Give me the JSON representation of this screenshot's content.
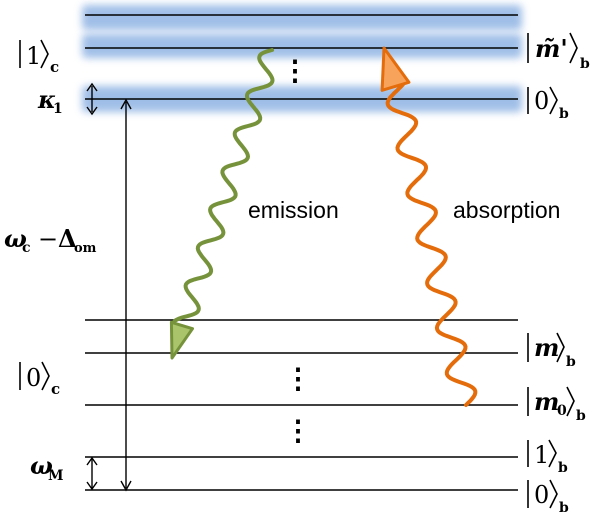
{
  "colors": {
    "band_glow": "#8fb3e3",
    "band_core": "#5b8fd6",
    "emission": "#76933c",
    "emission_head": "#a9c46b",
    "absorption": "#e46c0a",
    "absorption_head": "#f7a35c",
    "line": "#000000"
  },
  "cavity_labels": {
    "upper": {
      "ket": "1",
      "sub": "c"
    },
    "lower": {
      "ket": "0",
      "sub": "c"
    }
  },
  "level_labels": {
    "m_prime": {
      "ket": "m̃'",
      "sub": "b"
    },
    "zero_upper": {
      "ket": "0",
      "sub": "b"
    },
    "m": {
      "ket": "m",
      "sub": "b"
    },
    "m0": {
      "ket": "m",
      "ket_sub": "0",
      "sub": "b"
    },
    "one": {
      "ket": "1",
      "sub": "b"
    },
    "zero_lower": {
      "ket": "0",
      "sub": "b"
    }
  },
  "symbols": {
    "kappa": "κ",
    "kappa_sub": "1",
    "omega_c": "ω",
    "omega_c_sub": "c",
    "minus": "−",
    "delta": "Δ",
    "delta_sub": "om",
    "omega_m": "ω",
    "omega_m_sub": "M"
  },
  "transitions": {
    "emission": "emission",
    "absorption": "absorption"
  },
  "ellipsis": "⋮"
}
